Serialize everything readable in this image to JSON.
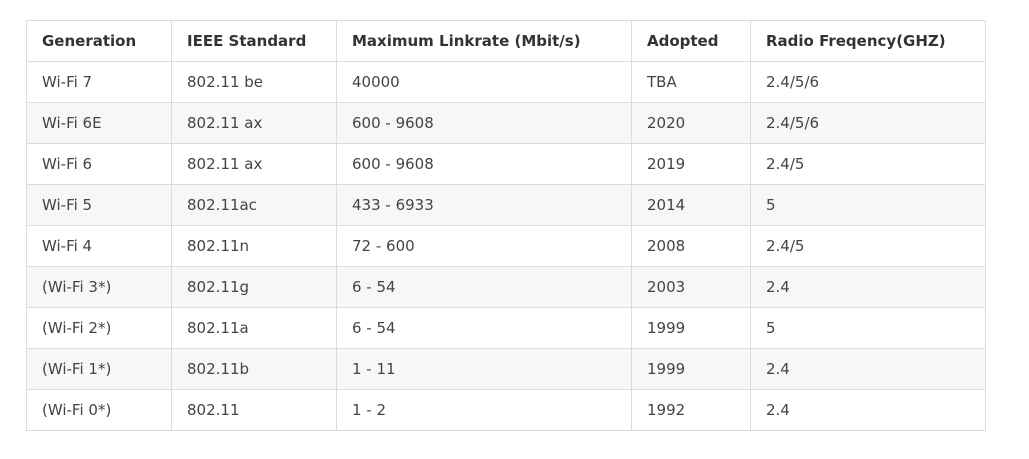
{
  "table": {
    "headers": [
      "Generation",
      "IEEE Standard",
      "Maximum Linkrate (Mbit/s)",
      "Adopted",
      "Radio Freqency(GHZ)"
    ],
    "rows": [
      [
        "Wi-Fi 7",
        "802.11 be",
        "40000",
        "TBA",
        "2.4/5/6"
      ],
      [
        "Wi-Fi 6E",
        "802.11 ax",
        "600 - 9608",
        "2020",
        "2.4/5/6"
      ],
      [
        "Wi-Fi 6",
        "802.11 ax",
        "600 - 9608",
        "2019",
        "2.4/5"
      ],
      [
        "Wi-Fi 5",
        "802.11ac",
        "433 - 6933",
        "2014",
        "5"
      ],
      [
        "Wi-Fi 4",
        "802.11n",
        "72 - 600",
        "2008",
        "2.4/5"
      ],
      [
        "(Wi-Fi 3*)",
        "802.11g",
        "6 - 54",
        "2003",
        "2.4"
      ],
      [
        "(Wi-Fi 2*)",
        "802.11a",
        "6 - 54",
        "1999",
        "5"
      ],
      [
        "(Wi-Fi 1*)",
        "802.11b",
        "1 - 11",
        "1999",
        "2.4"
      ],
      [
        "(Wi-Fi 0*)",
        "802.11",
        "1 - 2",
        "1992",
        "2.4"
      ]
    ]
  }
}
